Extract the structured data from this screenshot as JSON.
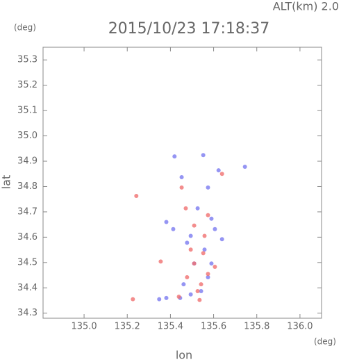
{
  "chart_data": {
    "type": "scatter",
    "title": "2015/10/23 17:18:37",
    "annotation": "ALT(km) 2.0",
    "y_unit": "(deg)",
    "x_unit": "(deg)",
    "xlabel": "lon",
    "ylabel": "lat",
    "xlim": [
      134.81,
      136.1
    ],
    "ylim": [
      34.28,
      35.35
    ],
    "xticks": [
      {
        "value": 135,
        "label": "135.0"
      },
      135.2,
      135.4,
      135.6,
      135.8,
      {
        "value": 136,
        "label": "136.0"
      }
    ],
    "yticks": [
      34.3,
      34.4,
      34.5,
      34.6,
      34.7,
      34.8,
      34.9,
      {
        "value": 35,
        "label": "35.0"
      },
      35.1,
      35.2,
      35.3
    ],
    "series": [
      {
        "color": "#7b7bf0",
        "x": [
          135.552,
          135.419,
          135.745,
          135.452,
          135.623,
          135.574,
          135.381,
          135.413,
          135.59,
          135.606,
          135.477,
          135.51,
          135.59,
          135.574,
          135.461,
          135.381,
          135.445,
          135.542,
          135.526,
          135.494,
          135.558,
          135.639,
          135.348,
          135.494
        ],
        "values": [
          34.924,
          34.919,
          34.878,
          34.837,
          34.864,
          34.796,
          34.66,
          34.632,
          34.673,
          34.632,
          34.578,
          34.496,
          34.496,
          34.442,
          34.414,
          34.36,
          34.36,
          34.387,
          34.714,
          34.605,
          34.551,
          34.592,
          34.355,
          34.374
        ]
      },
      {
        "color": "#f07070",
        "x": [
          135.242,
          135.226,
          135.439,
          135.526,
          135.542,
          135.574,
          135.477,
          135.606,
          135.51,
          135.494,
          135.558,
          135.51,
          135.574,
          135.471,
          135.639,
          135.452,
          135.552,
          135.355,
          135.535
        ],
        "values": [
          34.763,
          34.355,
          34.365,
          34.387,
          34.414,
          34.455,
          34.442,
          34.483,
          34.496,
          34.551,
          34.605,
          34.646,
          34.687,
          34.714,
          34.85,
          34.796,
          34.537,
          34.504,
          34.352
        ]
      }
    ]
  }
}
